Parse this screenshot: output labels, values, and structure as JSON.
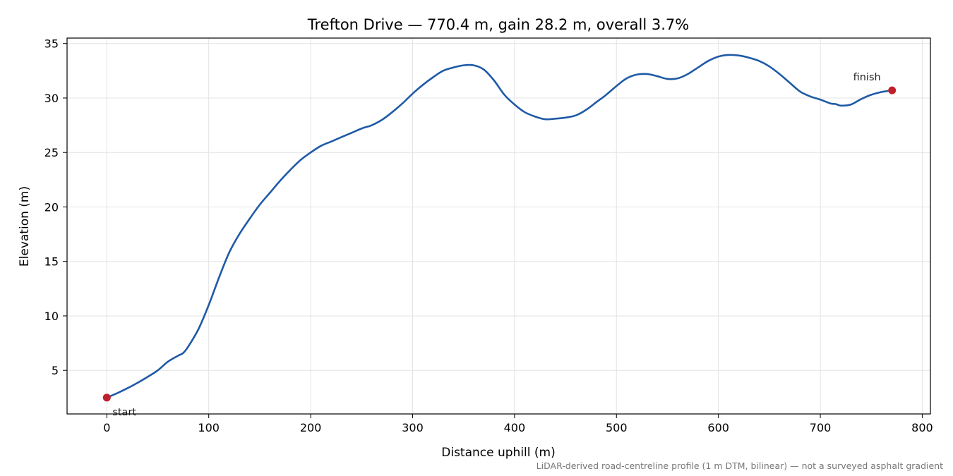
{
  "chart_data": {
    "type": "line",
    "title": "Trefton Drive — 770.4 m, gain 28.2 m, overall 3.7%",
    "xlabel": "Distance uphill (m)",
    "ylabel": "Elevation (m)",
    "xlim": [
      -39,
      808
    ],
    "ylim": [
      1.0,
      35.5
    ],
    "xticks": [
      0,
      100,
      200,
      300,
      400,
      500,
      600,
      700,
      800
    ],
    "yticks": [
      5,
      10,
      15,
      20,
      25,
      30,
      35
    ],
    "grid": true,
    "series": [
      {
        "color": "#1f5aa6",
        "x": [
          0,
          10,
          20,
          30,
          40,
          50,
          60,
          70,
          75,
          80,
          90,
          100,
          110,
          120,
          130,
          140,
          150,
          160,
          170,
          180,
          190,
          200,
          210,
          220,
          230,
          240,
          250,
          255,
          260,
          270,
          280,
          290,
          300,
          310,
          320,
          330,
          340,
          350,
          360,
          370,
          380,
          390,
          400,
          410,
          420,
          430,
          440,
          450,
          460,
          470,
          480,
          490,
          500,
          510,
          520,
          530,
          540,
          550,
          560,
          570,
          580,
          590,
          600,
          610,
          620,
          630,
          640,
          650,
          660,
          670,
          680,
          690,
          700,
          710,
          715,
          720,
          730,
          740,
          750,
          760,
          770.4
        ],
        "y": [
          2.5,
          2.9,
          3.35,
          3.85,
          4.4,
          5.0,
          5.8,
          6.35,
          6.6,
          7.2,
          8.8,
          11.0,
          13.5,
          15.8,
          17.5,
          18.9,
          20.2,
          21.3,
          22.4,
          23.4,
          24.3,
          25.0,
          25.6,
          26.0,
          26.4,
          26.8,
          27.2,
          27.35,
          27.5,
          28.0,
          28.7,
          29.5,
          30.4,
          31.2,
          31.9,
          32.5,
          32.8,
          33.0,
          33.0,
          32.6,
          31.6,
          30.3,
          29.4,
          28.7,
          28.3,
          28.05,
          28.1,
          28.2,
          28.4,
          28.9,
          29.6,
          30.3,
          31.1,
          31.8,
          32.15,
          32.2,
          32.0,
          31.75,
          31.8,
          32.2,
          32.8,
          33.4,
          33.8,
          33.95,
          33.9,
          33.7,
          33.4,
          32.9,
          32.2,
          31.4,
          30.6,
          30.15,
          29.85,
          29.5,
          29.45,
          29.3,
          29.4,
          29.9,
          30.3,
          30.55,
          30.7
        ]
      }
    ],
    "markers": [
      {
        "x": 0,
        "y": 2.5,
        "color": "#c0202a",
        "label": "start",
        "label_pos": "below-right"
      },
      {
        "x": 770.4,
        "y": 30.7,
        "color": "#c0202a",
        "label": "finish",
        "label_pos": "above-left"
      }
    ],
    "footnote": "LiDAR-derived road-centreline profile (1 m DTM, bilinear) — not a surveyed asphalt gradient"
  }
}
